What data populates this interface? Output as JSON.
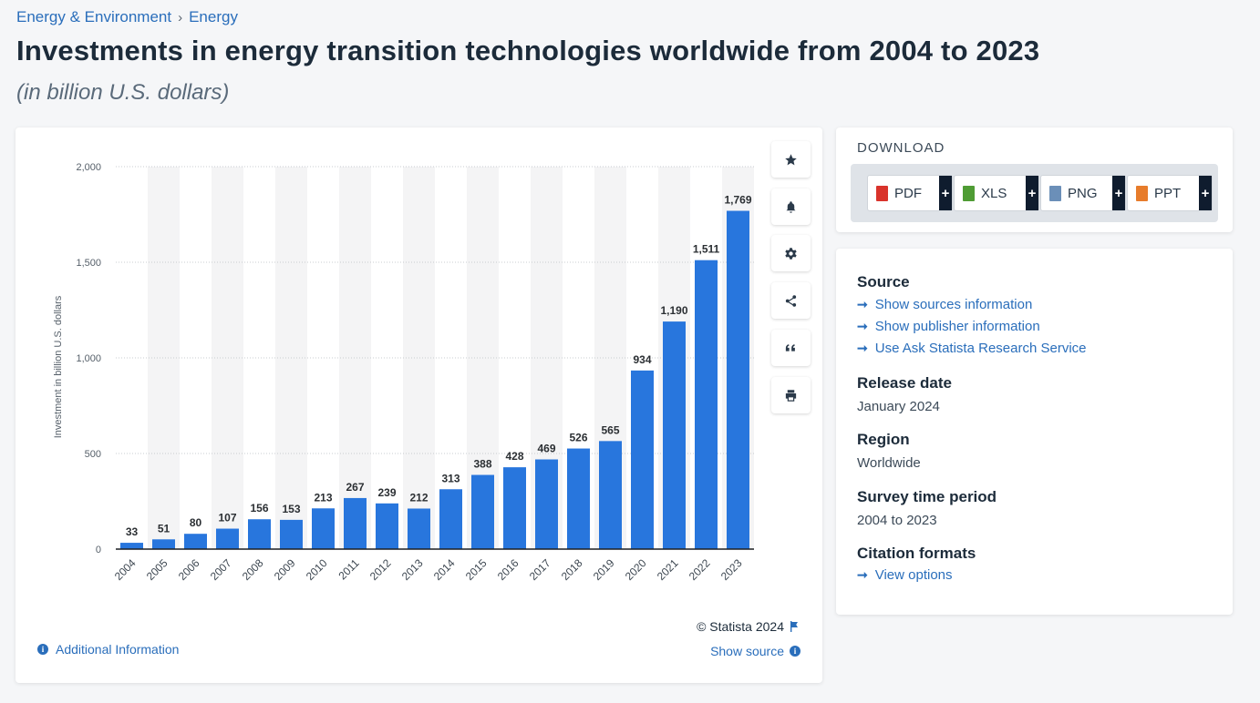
{
  "breadcrumb": {
    "items": [
      "Energy & Environment",
      "Energy"
    ],
    "separator": "›"
  },
  "page": {
    "title": "Investments in energy transition technologies worldwide from 2004 to 2023",
    "subtitle": "(in billion U.S. dollars)"
  },
  "chart_data": {
    "type": "bar",
    "categories": [
      "2004",
      "2005",
      "2006",
      "2007",
      "2008",
      "2009",
      "2010",
      "2011",
      "2012",
      "2013",
      "2014",
      "2015",
      "2016",
      "2017",
      "2018",
      "2019",
      "2020",
      "2021",
      "2022",
      "2023"
    ],
    "values": [
      33,
      51,
      80,
      107,
      156,
      153,
      213,
      267,
      239,
      212,
      313,
      388,
      428,
      469,
      526,
      565,
      934,
      1190,
      1511,
      1769
    ],
    "value_labels": [
      "33",
      "51",
      "80",
      "107",
      "156",
      "153",
      "213",
      "267",
      "239",
      "212",
      "313",
      "388",
      "428",
      "469",
      "526",
      "565",
      "934",
      "1,190",
      "1,511",
      "1,769"
    ],
    "ylabel": "Investment in billion U.S. dollars",
    "ylim": [
      0,
      2000
    ],
    "yticks": [
      0,
      500,
      1000,
      1500,
      2000
    ],
    "ytick_labels": [
      "0",
      "500",
      "1,000",
      "1,500",
      "2,000"
    ],
    "bar_color": "#2876dd",
    "grid": true
  },
  "tools": [
    "star-icon",
    "bell-icon",
    "gear-icon",
    "share-icon",
    "quote-icon",
    "print-icon"
  ],
  "chart_footer": {
    "credit": "© Statista 2024",
    "show_source": "Show source",
    "additional_info": "Additional Information"
  },
  "download": {
    "title": "DOWNLOAD",
    "buttons": [
      {
        "label": "PDF",
        "color": "#d9332b"
      },
      {
        "label": "XLS",
        "color": "#4f9c34"
      },
      {
        "label": "PNG",
        "color": "#6b8fb8"
      },
      {
        "label": "PPT",
        "color": "#e77c2b"
      }
    ],
    "plus": "+"
  },
  "meta": {
    "source_heading": "Source",
    "source_links": [
      "Show sources information",
      "Show publisher information",
      "Use Ask Statista Research Service"
    ],
    "release_heading": "Release date",
    "release_value": "January 2024",
    "region_heading": "Region",
    "region_value": "Worldwide",
    "period_heading": "Survey time period",
    "period_value": "2004 to 2023",
    "citation_heading": "Citation formats",
    "citation_link": "View options",
    "link_arrow": "➞"
  },
  "colors": {
    "link": "#2a6ebb",
    "title": "#1c2b3a",
    "accent_bar": "#2876dd"
  }
}
